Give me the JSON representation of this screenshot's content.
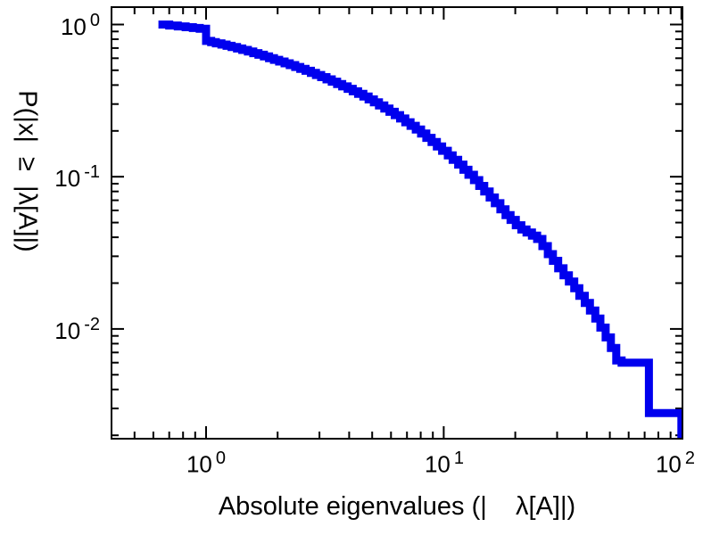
{
  "chart_data": {
    "type": "line",
    "style": "ccdf-staircase",
    "title": "",
    "xlabel": "Absolute eigenvalues (|    λ[A]|)",
    "ylabel": "P(|x|  ≥  |λ[A]|)",
    "xscale": "log",
    "yscale": "log",
    "xlim": [
      0.4,
      101
    ],
    "ylim": [
      0.0019,
      1.3
    ],
    "x_major_ticks": [
      1,
      10,
      100
    ],
    "y_major_ticks": [
      1,
      0.1,
      0.01
    ],
    "grid": false,
    "legend": false,
    "line_color": "#0000ee",
    "line_width": 9,
    "frame_color": "#000000",
    "points": [
      [
        0.63,
        1.0
      ],
      [
        0.7,
        0.985
      ],
      [
        0.76,
        0.972
      ],
      [
        0.82,
        0.96
      ],
      [
        0.88,
        0.948
      ],
      [
        0.94,
        0.938
      ],
      [
        1.0,
        0.78
      ],
      [
        1.05,
        0.765
      ],
      [
        1.1,
        0.752
      ],
      [
        1.16,
        0.738
      ],
      [
        1.22,
        0.724
      ],
      [
        1.28,
        0.71
      ],
      [
        1.35,
        0.695
      ],
      [
        1.42,
        0.68
      ],
      [
        1.5,
        0.664
      ],
      [
        1.58,
        0.648
      ],
      [
        1.66,
        0.633
      ],
      [
        1.75,
        0.617
      ],
      [
        1.84,
        0.601
      ],
      [
        1.93,
        0.586
      ],
      [
        2.03,
        0.571
      ],
      [
        2.14,
        0.556
      ],
      [
        2.25,
        0.541
      ],
      [
        2.37,
        0.526
      ],
      [
        2.49,
        0.511
      ],
      [
        2.62,
        0.496
      ],
      [
        2.76,
        0.481
      ],
      [
        2.9,
        0.466
      ],
      [
        3.05,
        0.451
      ],
      [
        3.21,
        0.436
      ],
      [
        3.38,
        0.421
      ],
      [
        3.56,
        0.406
      ],
      [
        3.74,
        0.392
      ],
      [
        3.94,
        0.378
      ],
      [
        4.14,
        0.364
      ],
      [
        4.36,
        0.35
      ],
      [
        4.59,
        0.336
      ],
      [
        4.83,
        0.322
      ],
      [
        5.08,
        0.308
      ],
      [
        5.34,
        0.294
      ],
      [
        5.62,
        0.28
      ],
      [
        5.91,
        0.267
      ],
      [
        6.22,
        0.254
      ],
      [
        6.55,
        0.241
      ],
      [
        6.89,
        0.228
      ],
      [
        7.25,
        0.216
      ],
      [
        7.63,
        0.204
      ],
      [
        8.03,
        0.192
      ],
      [
        8.45,
        0.18
      ],
      [
        8.89,
        0.169
      ],
      [
        9.35,
        0.158
      ],
      [
        9.84,
        0.148
      ],
      [
        10.4,
        0.138
      ],
      [
        10.9,
        0.129
      ],
      [
        11.5,
        0.12
      ],
      [
        12.1,
        0.111
      ],
      [
        12.7,
        0.103
      ],
      [
        13.4,
        0.095
      ],
      [
        14.1,
        0.087
      ],
      [
        14.8,
        0.08
      ],
      [
        15.6,
        0.073
      ],
      [
        16.4,
        0.067
      ],
      [
        17.3,
        0.061
      ],
      [
        18.2,
        0.056
      ],
      [
        19.1,
        0.052
      ],
      [
        20.1,
        0.048
      ],
      [
        21.2,
        0.045
      ],
      [
        22.3,
        0.043
      ],
      [
        23.5,
        0.041
      ],
      [
        24.7,
        0.039
      ],
      [
        26.0,
        0.035
      ],
      [
        27.4,
        0.031
      ],
      [
        28.8,
        0.028
      ],
      [
        30.3,
        0.025
      ],
      [
        31.9,
        0.0225
      ],
      [
        33.6,
        0.0205
      ],
      [
        35.4,
        0.0185
      ],
      [
        37.2,
        0.0165
      ],
      [
        39.2,
        0.0148
      ],
      [
        41.2,
        0.0132
      ],
      [
        43.4,
        0.0117
      ],
      [
        45.6,
        0.0102
      ],
      [
        48.0,
        0.0088
      ],
      [
        50.5,
        0.0075
      ],
      [
        53.2,
        0.0062
      ],
      [
        56.0,
        0.006
      ],
      [
        73.0,
        0.0028
      ],
      [
        100.0,
        0.0008
      ]
    ]
  },
  "labels": {
    "axis_ticks": {
      "x": [
        {
          "base": "10",
          "exp": "0"
        },
        {
          "base": "10",
          "exp": "1"
        },
        {
          "base": "10",
          "exp": "2"
        }
      ],
      "y": [
        {
          "base": "10",
          "exp": "0"
        },
        {
          "base": "10",
          "exp": "-1"
        },
        {
          "base": "10",
          "exp": "-2"
        }
      ]
    }
  }
}
